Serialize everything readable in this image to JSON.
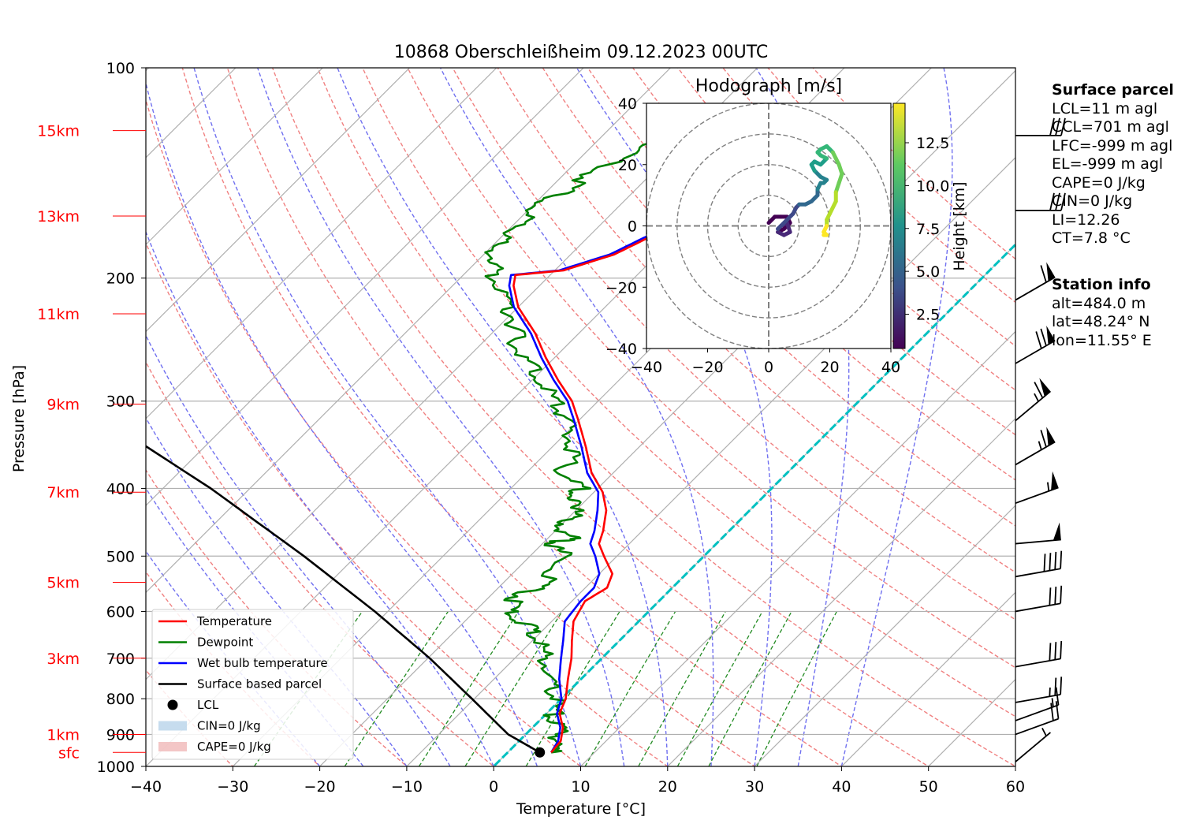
{
  "title": "10868 Oberschleißheim 09.12.2023 00UTC",
  "chart_data": {
    "type": "line",
    "subtype": "skew-T log-P diagram",
    "xlabel": "Temperature [°C]",
    "ylabel": "Pressure [hPa]",
    "xlim": [
      -40,
      60
    ],
    "ylim": [
      1000,
      100
    ],
    "y_scale": "log",
    "grid": true,
    "x_ticks": [
      "−40",
      "−30",
      "−20",
      "−10",
      "0",
      "10",
      "20",
      "30",
      "40",
      "50",
      "60"
    ],
    "y_ticks": [
      "100",
      "200",
      "300",
      "400",
      "500",
      "600",
      "700",
      "800",
      "900",
      "1000"
    ],
    "height_labels": [
      {
        "label": "sfc",
        "p": 955
      },
      {
        "label": "1km",
        "p": 900
      },
      {
        "label": "3km",
        "p": 700
      },
      {
        "label": "5km",
        "p": 545
      },
      {
        "label": "7km",
        "p": 405
      },
      {
        "label": "9km",
        "p": 303
      },
      {
        "label": "11km",
        "p": 225
      },
      {
        "label": "13km",
        "p": 163
      },
      {
        "label": "15km",
        "p": 123
      }
    ],
    "series": [
      {
        "name": "Temperature",
        "color": "#ff0000",
        "points": [
          [
            955,
            5.0
          ],
          [
            920,
            4.8
          ],
          [
            880,
            3.5
          ],
          [
            840,
            1.5
          ],
          [
            800,
            0.5
          ],
          [
            750,
            -1.5
          ],
          [
            700,
            -3.5
          ],
          [
            660,
            -5.5
          ],
          [
            620,
            -7.5
          ],
          [
            580,
            -8.5
          ],
          [
            555,
            -7.5
          ],
          [
            530,
            -8.5
          ],
          [
            500,
            -11.5
          ],
          [
            480,
            -13.5
          ],
          [
            460,
            -14.5
          ],
          [
            430,
            -16.5
          ],
          [
            405,
            -19.0
          ],
          [
            380,
            -22.5
          ],
          [
            350,
            -26.0
          ],
          [
            320,
            -30.0
          ],
          [
            300,
            -33.0
          ],
          [
            280,
            -37.0
          ],
          [
            260,
            -41.0
          ],
          [
            240,
            -45.0
          ],
          [
            220,
            -50.0
          ],
          [
            205,
            -53.0
          ],
          [
            198,
            -54.0
          ],
          [
            195,
            -49.0
          ],
          [
            185,
            -45.0
          ],
          [
            175,
            -43.0
          ],
          [
            165,
            -40.0
          ],
          [
            155,
            -38.0
          ],
          [
            145,
            -35.0
          ],
          [
            135,
            -33.0
          ],
          [
            128,
            -31.0
          ],
          [
            124,
            -30.0
          ]
        ]
      },
      {
        "name": "Dewpoint",
        "color": "#008000",
        "points": [
          [
            955,
            5.0
          ],
          [
            920,
            4.3
          ],
          [
            880,
            3.0
          ],
          [
            840,
            0.8
          ],
          [
            800,
            -0.8
          ],
          [
            750,
            -3.5
          ],
          [
            700,
            -6.5
          ],
          [
            660,
            -9.0
          ],
          [
            630,
            -12.0
          ],
          [
            600,
            -16.0
          ],
          [
            575,
            -17.0
          ],
          [
            545,
            -15.0
          ],
          [
            500,
            -16.0
          ],
          [
            480,
            -19.0
          ],
          [
            470,
            -17.0
          ],
          [
            450,
            -21.0
          ],
          [
            430,
            -19.0
          ],
          [
            415,
            -22.0
          ],
          [
            400,
            -22.0
          ],
          [
            380,
            -26.0
          ],
          [
            355,
            -27.0
          ],
          [
            330,
            -30.0
          ],
          [
            310,
            -33.0
          ],
          [
            290,
            -37.0
          ],
          [
            270,
            -41.0
          ],
          [
            250,
            -46.0
          ],
          [
            235,
            -48.0
          ],
          [
            220,
            -51.0
          ],
          [
            200,
            -56.0
          ],
          [
            190,
            -58.0
          ],
          [
            180,
            -60.0
          ],
          [
            170,
            -59.0
          ],
          [
            160,
            -60.0
          ],
          [
            150,
            -58.0
          ],
          [
            140,
            -57.0
          ],
          [
            130,
            -54.0
          ],
          [
            122,
            -51.0
          ]
        ]
      },
      {
        "name": "Wet bulb temperature",
        "color": "#0000ff",
        "points": [
          [
            955,
            5.0
          ],
          [
            920,
            4.5
          ],
          [
            880,
            3.2
          ],
          [
            840,
            1.2
          ],
          [
            800,
            0.0
          ],
          [
            750,
            -2.5
          ],
          [
            700,
            -4.7
          ],
          [
            660,
            -6.5
          ],
          [
            620,
            -8.5
          ],
          [
            580,
            -9.0
          ],
          [
            555,
            -9.0
          ],
          [
            530,
            -10.0
          ],
          [
            500,
            -12.5
          ],
          [
            480,
            -14.5
          ],
          [
            460,
            -15.5
          ],
          [
            430,
            -17.5
          ],
          [
            405,
            -19.5
          ],
          [
            380,
            -23.0
          ],
          [
            350,
            -26.5
          ],
          [
            320,
            -30.5
          ],
          [
            300,
            -33.5
          ],
          [
            280,
            -37.5
          ],
          [
            260,
            -41.5
          ],
          [
            240,
            -45.5
          ],
          [
            220,
            -50.5
          ],
          [
            205,
            -53.5
          ],
          [
            198,
            -54.5
          ],
          [
            195,
            -49.5
          ],
          [
            185,
            -45.5
          ],
          [
            175,
            -43.5
          ],
          [
            165,
            -40.5
          ],
          [
            155,
            -38.5
          ],
          [
            145,
            -35.5
          ],
          [
            135,
            -33.5
          ],
          [
            128,
            -31.5
          ],
          [
            124,
            -30.3
          ]
        ]
      },
      {
        "name": "Surface based parcel",
        "color": "#000000",
        "points": [
          [
            955,
            3.7
          ],
          [
            900,
            -2.0
          ],
          [
            800,
            -10.3
          ],
          [
            700,
            -19.8
          ],
          [
            600,
            -31.5
          ],
          [
            500,
            -46.0
          ],
          [
            400,
            -64.5
          ],
          [
            300,
            -90.0
          ],
          [
            210,
            -120.0
          ]
        ]
      }
    ],
    "lcl": {
      "name": "LCL",
      "p": 955,
      "t": 3.7
    },
    "zero_line": {
      "color": "#00c0c0",
      "t": 0
    },
    "legend": {
      "placement": "lower-left",
      "entries": [
        "Temperature",
        "Dewpoint",
        "Wet bulb temperature",
        "Surface based parcel",
        "LCL",
        "CIN=0 J/kg",
        "CAPE=0 J/kg"
      ]
    },
    "wind_barbs": [
      {
        "p": 985,
        "speed_kt": 5,
        "dir_deg": 230
      },
      {
        "p": 900,
        "speed_kt": 20,
        "dir_deg": 250
      },
      {
        "p": 860,
        "speed_kt": 15,
        "dir_deg": 250
      },
      {
        "p": 810,
        "speed_kt": 25,
        "dir_deg": 260
      },
      {
        "p": 720,
        "speed_kt": 30,
        "dir_deg": 260
      },
      {
        "p": 600,
        "speed_kt": 30,
        "dir_deg": 260
      },
      {
        "p": 535,
        "speed_kt": 40,
        "dir_deg": 260
      },
      {
        "p": 480,
        "speed_kt": 50,
        "dir_deg": 265
      },
      {
        "p": 420,
        "speed_kt": 55,
        "dir_deg": 250
      },
      {
        "p": 370,
        "speed_kt": 65,
        "dir_deg": 240
      },
      {
        "p": 320,
        "speed_kt": 65,
        "dir_deg": 230
      },
      {
        "p": 265,
        "speed_kt": 70,
        "dir_deg": 240
      },
      {
        "p": 215,
        "speed_kt": 60,
        "dir_deg": 240
      },
      {
        "p": 160,
        "speed_kt": 30,
        "dir_deg": 270
      },
      {
        "p": 125,
        "speed_kt": 30,
        "dir_deg": 270
      }
    ],
    "hodograph": {
      "title": "Hodograph [m/s]",
      "xlim": [
        -40,
        40
      ],
      "ylim": [
        -40,
        40
      ],
      "ticks": [
        "−40",
        "−20",
        "0",
        "20",
        "40"
      ],
      "rings": [
        10,
        20,
        30,
        40
      ],
      "colorbar_label": "Height [km]",
      "colorbar_ticks": [
        "2.5",
        "5.0",
        "7.5",
        "10.0",
        "12.5"
      ],
      "colorbar_range": [
        0.5,
        14.8
      ],
      "uv": [
        [
          0,
          1,
          0.5
        ],
        [
          2,
          3,
          0.8
        ],
        [
          4,
          3,
          1.0
        ],
        [
          6,
          3,
          1.3
        ],
        [
          7,
          1,
          1.6
        ],
        [
          5,
          -1,
          1.9
        ],
        [
          3,
          -2,
          2.2
        ],
        [
          5,
          -3,
          2.5
        ],
        [
          7,
          -2,
          2.8
        ],
        [
          6,
          1,
          3.1
        ],
        [
          4,
          0,
          3.4
        ],
        [
          3,
          -1,
          3.6
        ],
        [
          6,
          2,
          3.9
        ],
        [
          8,
          4,
          4.2
        ],
        [
          9,
          6,
          4.5
        ],
        [
          10,
          7,
          4.8
        ],
        [
          12,
          7,
          5.1
        ],
        [
          14,
          8,
          5.4
        ],
        [
          15,
          9,
          5.7
        ],
        [
          16,
          10,
          6.0
        ],
        [
          16,
          12,
          6.3
        ],
        [
          17,
          14,
          6.6
        ],
        [
          18,
          14,
          6.9
        ],
        [
          19,
          15,
          7.2
        ],
        [
          17,
          16,
          7.4
        ],
        [
          15,
          18,
          7.7
        ],
        [
          14,
          20,
          8.0
        ],
        [
          15,
          21,
          8.3
        ],
        [
          17,
          20,
          8.5
        ],
        [
          18,
          21,
          8.8
        ],
        [
          19,
          22,
          9.1
        ],
        [
          17,
          23,
          9.3
        ],
        [
          16,
          24,
          9.6
        ],
        [
          17,
          25,
          9.9
        ],
        [
          19,
          26,
          10.2
        ],
        [
          20,
          25,
          10.5
        ],
        [
          21,
          24,
          10.8
        ],
        [
          22,
          22,
          11.1
        ],
        [
          23,
          20,
          11.4
        ],
        [
          24,
          17,
          11.7
        ],
        [
          23,
          14,
          11.9
        ],
        [
          22,
          11,
          12.2
        ],
        [
          22,
          8,
          12.4
        ],
        [
          20,
          4,
          12.7
        ],
        [
          19,
          2,
          13.1
        ],
        [
          19,
          0,
          13.5
        ],
        [
          18,
          -2,
          13.9
        ],
        [
          19,
          -3,
          14.3
        ],
        [
          18,
          -3,
          14.6
        ]
      ]
    }
  },
  "surface_parcel": {
    "header": "Surface parcel",
    "lines": [
      "LCL=11 m agl",
      "CCL=701 m agl",
      "LFC=-999 m agl",
      "EL=-999 m agl",
      "CAPE=0 J/kg",
      "CIN=0 J/kg",
      "LI=12.26",
      "CT=7.8 °C"
    ]
  },
  "station_info": {
    "header": "Station info",
    "lines": [
      "alt=484.0 m",
      "lat=48.24° N",
      "lon=11.55° E"
    ]
  }
}
